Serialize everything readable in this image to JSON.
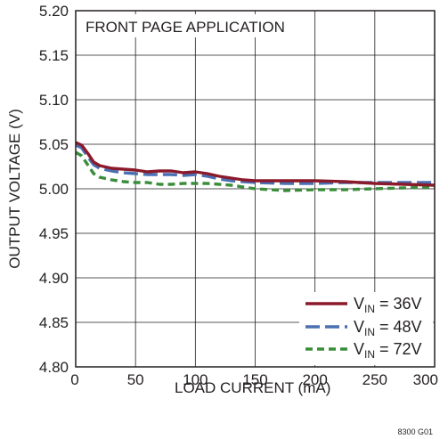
{
  "chart_data": {
    "type": "line",
    "title": "FRONT PAGE APPLICATION",
    "xlabel": "LOAD CURRENT (mA)",
    "ylabel": "OUTPUT VOLTAGE (V)",
    "figure_id": "8300 G01",
    "xlim": [
      0,
      300
    ],
    "ylim": [
      4.8,
      5.2
    ],
    "x_ticks": [
      0,
      50,
      100,
      150,
      200,
      250,
      300
    ],
    "y_ticks": [
      5.2,
      5.15,
      5.1,
      5.05,
      5.0,
      4.95,
      4.9,
      4.85,
      4.8
    ],
    "x_tick_labels": [
      "0",
      "50",
      "100",
      "150",
      "200",
      "250",
      "300"
    ],
    "y_tick_labels": [
      "5.20",
      "5.15",
      "5.10",
      "5.05",
      "5.00",
      "4.95",
      "4.90",
      "4.85",
      "4.80"
    ],
    "grid": true,
    "legend_position": "bottom-right",
    "series": [
      {
        "name": "VIN = 36V",
        "legend_main": "V",
        "legend_sub": "IN",
        "legend_rest": " = 36V",
        "color": "#8b1a2b",
        "dash": "solid",
        "x": [
          0,
          5,
          10,
          15,
          20,
          30,
          40,
          50,
          60,
          70,
          80,
          90,
          100,
          110,
          120,
          130,
          140,
          150,
          175,
          200,
          225,
          250,
          275,
          300
        ],
        "y": [
          5.052,
          5.049,
          5.04,
          5.03,
          5.026,
          5.023,
          5.022,
          5.021,
          5.019,
          5.02,
          5.02,
          5.018,
          5.019,
          5.017,
          5.014,
          5.012,
          5.01,
          5.009,
          5.009,
          5.009,
          5.008,
          5.006,
          5.005,
          5.004
        ]
      },
      {
        "name": "VIN = 48V",
        "legend_main": "V",
        "legend_sub": "IN",
        "legend_rest": " = 48V",
        "color": "#4a6fb3",
        "dash": "long-dash",
        "x": [
          0,
          5,
          10,
          15,
          20,
          30,
          40,
          50,
          60,
          70,
          80,
          90,
          100,
          110,
          120,
          130,
          140,
          150,
          175,
          200,
          225,
          250,
          275,
          300
        ],
        "y": [
          5.049,
          5.046,
          5.036,
          5.027,
          5.023,
          5.02,
          5.018,
          5.017,
          5.016,
          5.016,
          5.016,
          5.015,
          5.016,
          5.014,
          5.011,
          5.009,
          5.008,
          5.007,
          5.006,
          5.006,
          5.007,
          5.007,
          5.007,
          5.007
        ]
      },
      {
        "name": "VIN = 72V",
        "legend_main": "V",
        "legend_sub": "IN",
        "legend_rest": " = 72V",
        "color": "#3a8d3a",
        "dash": "short-dash",
        "x": [
          0,
          5,
          10,
          15,
          20,
          30,
          40,
          50,
          60,
          70,
          80,
          90,
          100,
          110,
          120,
          130,
          140,
          150,
          175,
          200,
          225,
          250,
          275,
          300
        ],
        "y": [
          5.041,
          5.037,
          5.027,
          5.017,
          5.013,
          5.01,
          5.008,
          5.007,
          5.007,
          5.005,
          5.005,
          5.006,
          5.006,
          5.006,
          5.005,
          5.004,
          5.002,
          5.0,
          4.998,
          4.999,
          4.999,
          5.0,
          5.001,
          5.002
        ]
      }
    ]
  }
}
